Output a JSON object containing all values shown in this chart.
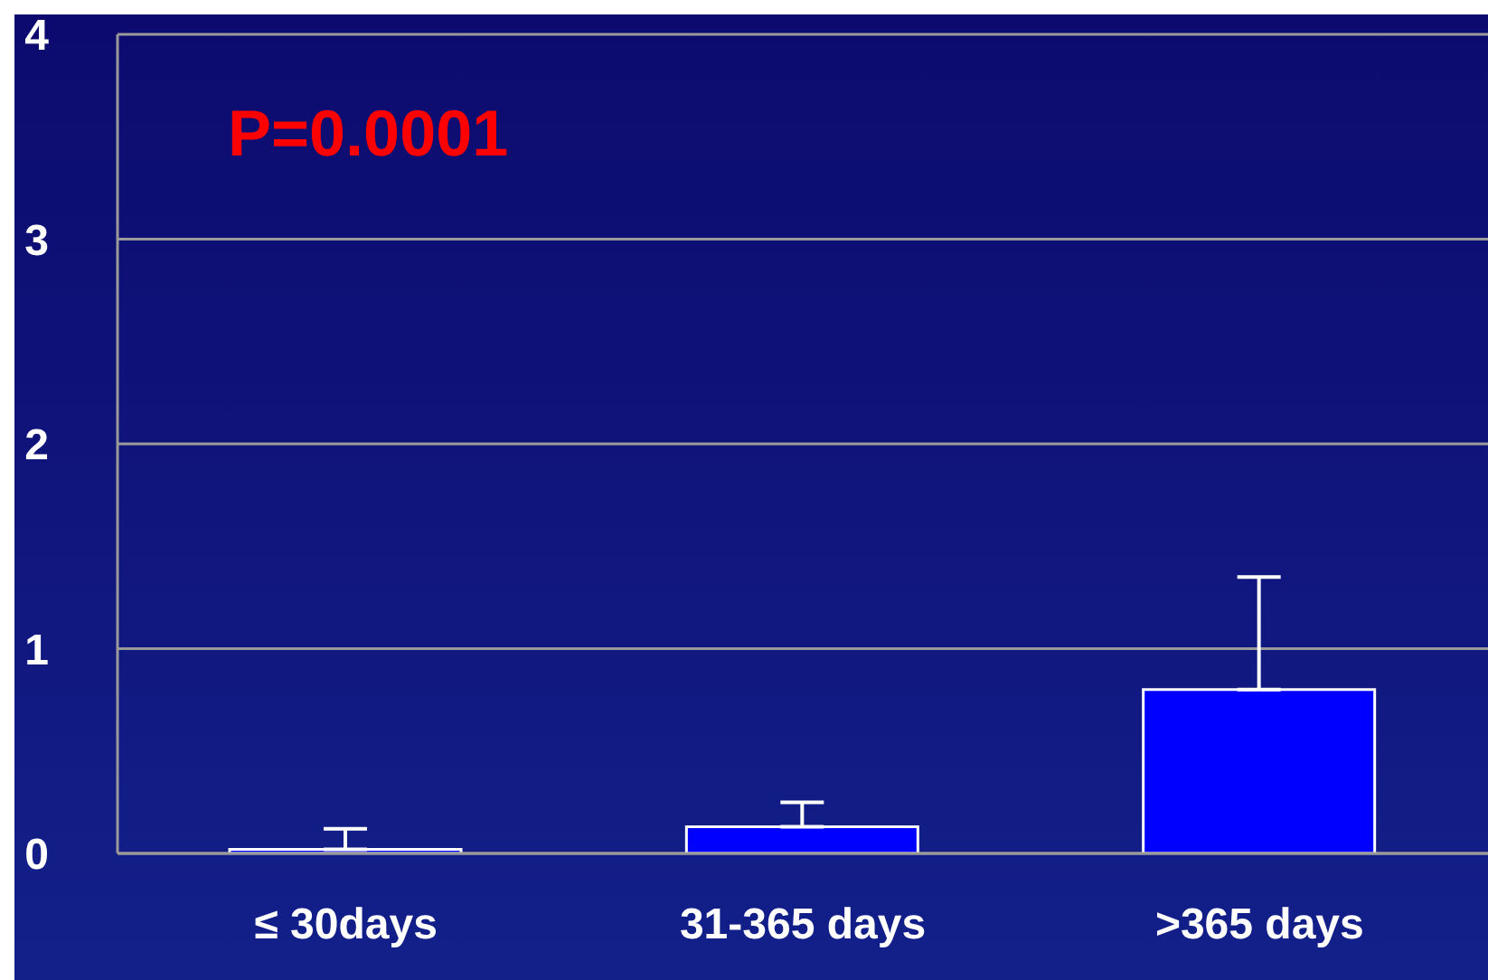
{
  "chart_data": {
    "type": "bar",
    "categories": [
      "≤ 30days",
      "31-365 days",
      ">365 days"
    ],
    "values": [
      0.02,
      0.13,
      0.8
    ],
    "color": "#0000ff",
    "errors": [
      [
        0.02,
        0.12
      ],
      [
        0.13,
        0.25
      ],
      [
        0.8,
        1.35
      ]
    ],
    "ylim": [
      0,
      4
    ],
    "yticks": [
      0,
      1,
      2,
      3,
      4
    ],
    "grid": "y",
    "annotations": [
      "P=0.0001"
    ]
  }
}
